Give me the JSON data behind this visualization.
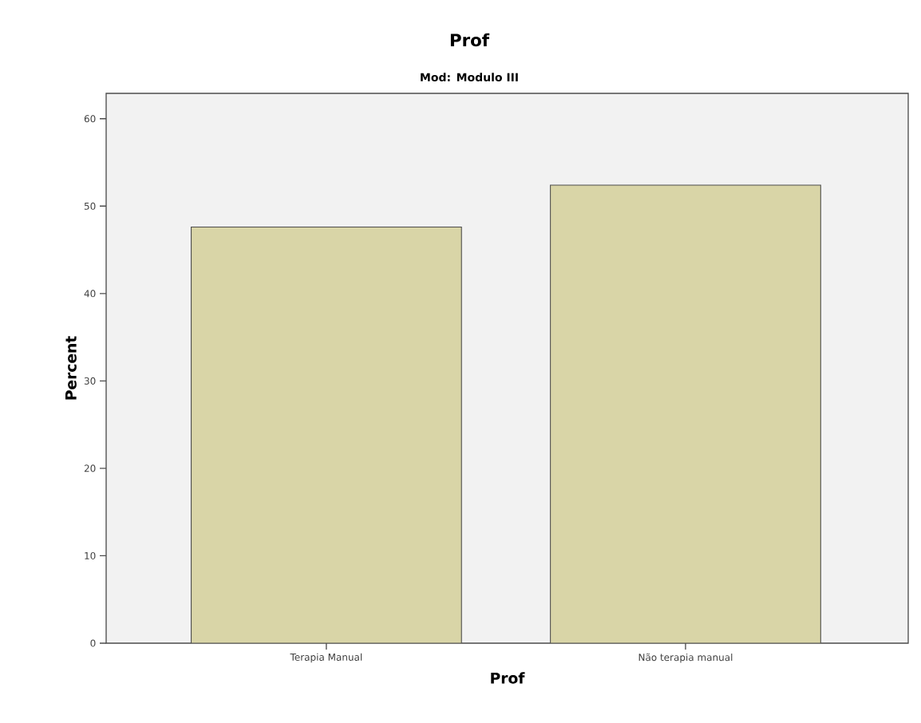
{
  "chart_data": {
    "type": "bar",
    "title": "Prof",
    "subtitle": "Mod: Modulo III",
    "xlabel": "Prof",
    "ylabel": "Percent",
    "categories": [
      "Terapia Manual",
      "Não terapia manual"
    ],
    "values": [
      47.6,
      52.4
    ],
    "color": "#d9d5a7",
    "ylim": [
      0,
      62.9
    ],
    "yticks": [
      0,
      10,
      20,
      30,
      40,
      50,
      60
    ],
    "grid": false
  }
}
